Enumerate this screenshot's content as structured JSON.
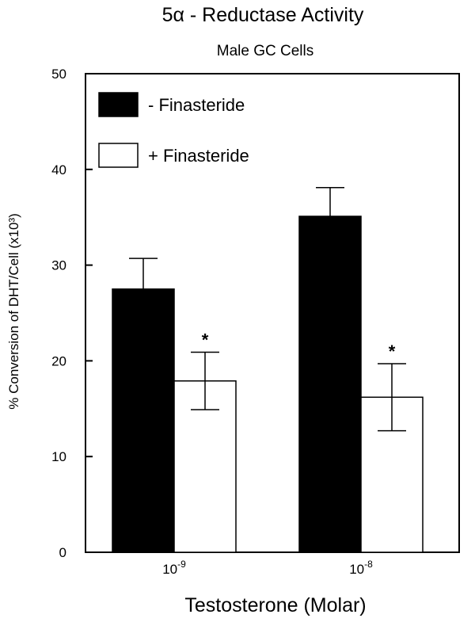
{
  "chart_data": {
    "type": "bar",
    "title": "5α - Reductase Activity",
    "subtitle": "Male GC Cells",
    "xlabel": "Testosterone (Molar)",
    "ylabel": "% Conversion of DHT/Cell (x10³)",
    "ylim": [
      0,
      50
    ],
    "yticks": [
      0,
      10,
      20,
      30,
      40,
      50
    ],
    "categories": [
      {
        "base": "10",
        "exp": "-9"
      },
      {
        "base": "10",
        "exp": "-8"
      }
    ],
    "series": [
      {
        "name": "- Finasteride",
        "fill": "#000000",
        "values": [
          27.5,
          35.1
        ],
        "errors": [
          3.2,
          3.0
        ],
        "significance": [
          "",
          ""
        ]
      },
      {
        "name": "+ Finasteride",
        "fill": "#ffffff",
        "values": [
          17.9,
          16.2
        ],
        "errors": [
          3.0,
          3.5
        ],
        "significance": [
          "*",
          "*"
        ]
      }
    ],
    "legend_position": "top-left",
    "grid": false
  }
}
